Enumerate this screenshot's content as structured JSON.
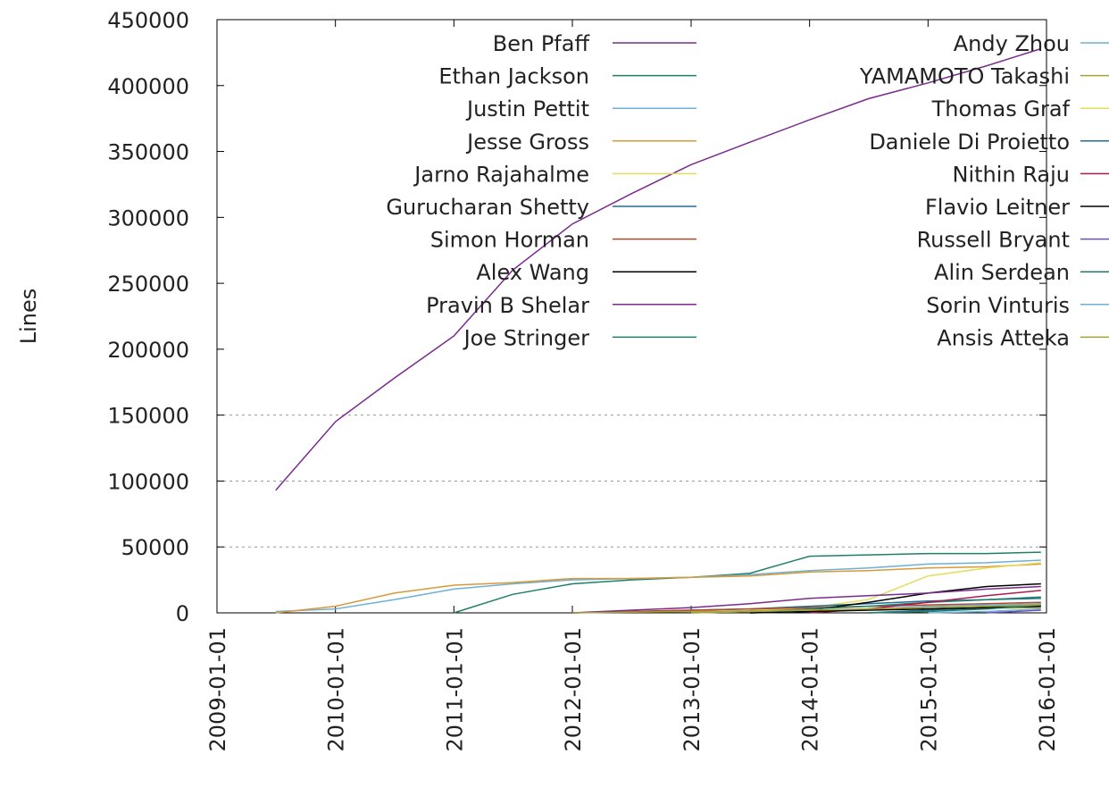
{
  "chart_data": {
    "type": "line",
    "ylabel": "Lines",
    "x": [
      "2009-07-01",
      "2010-01-01",
      "2010-07-01",
      "2011-01-01",
      "2011-07-01",
      "2012-01-01",
      "2012-07-01",
      "2013-01-01",
      "2013-07-01",
      "2014-01-01",
      "2014-07-01",
      "2015-01-01",
      "2015-07-01",
      "2015-12-15"
    ],
    "xlim": [
      "2009-01-01",
      "2016-01-01"
    ],
    "xticks": [
      "2009-01-01",
      "2010-01-01",
      "2011-01-01",
      "2012-01-01",
      "2013-01-01",
      "2014-01-01",
      "2015-01-01",
      "2016-01-01"
    ],
    "ylim": [
      0,
      450000
    ],
    "yticks": [
      0,
      50000,
      100000,
      150000,
      200000,
      250000,
      300000,
      350000,
      400000,
      450000
    ],
    "grid": true,
    "series": [
      {
        "name": "Ben Pfaff",
        "color": "#7b2a8e",
        "values": [
          93000,
          145000,
          178000,
          210000,
          260000,
          295000,
          318000,
          340000,
          357000,
          374000,
          390000,
          402000,
          415000,
          428000
        ]
      },
      {
        "name": "Ethan Jackson",
        "color": "#1f7f6a",
        "values": [
          null,
          null,
          null,
          0,
          14000,
          22000,
          25000,
          27000,
          30000,
          43000,
          44000,
          45000,
          45000,
          46000
        ]
      },
      {
        "name": "Justin Pettit",
        "color": "#6fb0d6",
        "values": [
          1000,
          3000,
          10000,
          18000,
          22000,
          25000,
          26000,
          27000,
          29000,
          32000,
          34000,
          37000,
          38000,
          40000
        ]
      },
      {
        "name": "Jesse Gross",
        "color": "#d79a3a",
        "values": [
          0,
          5000,
          15000,
          21000,
          23000,
          26000,
          26000,
          27000,
          28000,
          31000,
          32000,
          34000,
          35000,
          37000
        ]
      },
      {
        "name": "Jarno Rajahalme",
        "color": "#e3dc5a",
        "values": [
          null,
          null,
          null,
          null,
          null,
          null,
          null,
          null,
          2000,
          4000,
          10000,
          28000,
          34000,
          38000
        ]
      },
      {
        "name": "Gurucharan Shetty",
        "color": "#1f6f96",
        "values": [
          null,
          null,
          null,
          null,
          null,
          0,
          1000,
          2000,
          3000,
          5000,
          7000,
          9000,
          10000,
          11000
        ]
      },
      {
        "name": "Simon Horman",
        "color": "#b5472e",
        "values": [
          null,
          null,
          null,
          null,
          null,
          0,
          1000,
          2000,
          3000,
          4000,
          5000,
          6000,
          7000,
          8000
        ]
      },
      {
        "name": "Alex Wang",
        "color": "#000000",
        "values": [
          null,
          null,
          null,
          null,
          null,
          null,
          null,
          null,
          0,
          2000,
          8000,
          15000,
          20000,
          22000
        ]
      },
      {
        "name": "Pravin B Shelar",
        "color": "#7b2a8e",
        "values": [
          null,
          null,
          null,
          null,
          null,
          0,
          2000,
          4000,
          7000,
          11000,
          13000,
          15000,
          18000,
          20000
        ]
      },
      {
        "name": "Joe Stringer",
        "color": "#1f7f6a",
        "values": [
          null,
          null,
          null,
          null,
          null,
          null,
          null,
          0,
          1000,
          3000,
          5000,
          8000,
          10000,
          12000
        ]
      },
      {
        "name": "Andy Zhou",
        "color": "#6fb0d6",
        "values": [
          null,
          null,
          null,
          null,
          null,
          null,
          null,
          null,
          0,
          1000,
          3000,
          5000,
          6000,
          7000
        ]
      },
      {
        "name": "YAMAMOTO Takashi",
        "color": "#a6a23a",
        "values": [
          null,
          null,
          null,
          null,
          null,
          0,
          500,
          1000,
          1500,
          2000,
          2500,
          3000,
          3500,
          4000
        ]
      },
      {
        "name": "Thomas Graf",
        "color": "#e3dc5a",
        "values": [
          null,
          null,
          null,
          null,
          null,
          null,
          null,
          0,
          1000,
          2000,
          3000,
          4000,
          5000,
          6000
        ]
      },
      {
        "name": "Daniele Di Proietto",
        "color": "#1f6f96",
        "values": [
          null,
          null,
          null,
          null,
          null,
          null,
          null,
          null,
          null,
          null,
          0,
          2000,
          4000,
          6000
        ]
      },
      {
        "name": "Nithin Raju",
        "color": "#b0194f",
        "values": [
          null,
          null,
          null,
          null,
          null,
          null,
          null,
          null,
          null,
          0,
          3000,
          8000,
          13000,
          17000
        ]
      },
      {
        "name": "Flavio Leitner",
        "color": "#000000",
        "values": [
          null,
          null,
          null,
          null,
          null,
          null,
          null,
          null,
          0,
          1000,
          2000,
          3000,
          4000,
          5000
        ]
      },
      {
        "name": "Russell Bryant",
        "color": "#6a4fc0",
        "values": [
          null,
          null,
          null,
          null,
          null,
          null,
          null,
          null,
          null,
          null,
          null,
          null,
          0,
          2000
        ]
      },
      {
        "name": "Alin Serdean",
        "color": "#1f7f6a",
        "values": [
          null,
          null,
          null,
          null,
          null,
          null,
          null,
          null,
          null,
          null,
          0,
          1000,
          3000,
          6000
        ]
      },
      {
        "name": "Sorin Vinturis",
        "color": "#6fb0d6",
        "values": [
          null,
          null,
          null,
          null,
          null,
          null,
          null,
          null,
          null,
          null,
          null,
          0,
          1000,
          3000
        ]
      },
      {
        "name": "Ansis Atteka",
        "color": "#a6a23a",
        "values": [
          null,
          null,
          null,
          null,
          null,
          null,
          null,
          0,
          1000,
          2000,
          3000,
          4000,
          5000,
          6000
        ]
      }
    ]
  }
}
